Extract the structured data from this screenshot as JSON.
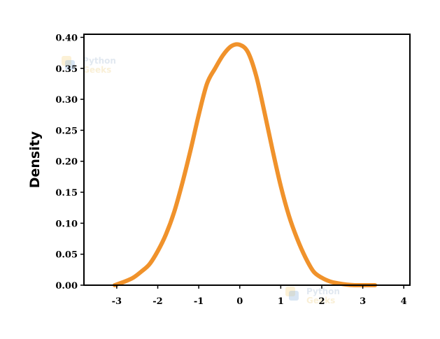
{
  "chart_data": {
    "type": "line",
    "title": "",
    "xlabel": "",
    "ylabel": "Density",
    "xlim": [
      -3.8,
      4.15
    ],
    "ylim": [
      0,
      0.405
    ],
    "x_ticks": [
      -3,
      -2,
      -1,
      0,
      1,
      2,
      3,
      4
    ],
    "y_ticks": [
      0.0,
      0.05,
      0.1,
      0.15,
      0.2,
      0.25,
      0.3,
      0.35,
      0.4
    ],
    "y_tick_labels": [
      "0.00",
      "0.05",
      "0.10",
      "0.15",
      "0.20",
      "0.25",
      "0.30",
      "0.35",
      "0.40"
    ],
    "grid": false,
    "legend": "none",
    "series": [
      {
        "color": "#f0922b",
        "x": [
          -3.05,
          -2.8,
          -2.6,
          -2.4,
          -2.2,
          -2.0,
          -1.8,
          -1.6,
          -1.4,
          -1.2,
          -1.0,
          -0.8,
          -0.6,
          -0.4,
          -0.2,
          0.0,
          0.2,
          0.4,
          0.6,
          0.8,
          1.0,
          1.2,
          1.4,
          1.6,
          1.8,
          2.0,
          2.2,
          2.4,
          2.6,
          2.8,
          3.0,
          3.3
        ],
        "y": [
          0.0,
          0.006,
          0.012,
          0.022,
          0.034,
          0.055,
          0.082,
          0.118,
          0.165,
          0.218,
          0.275,
          0.325,
          0.35,
          0.372,
          0.386,
          0.388,
          0.376,
          0.338,
          0.28,
          0.218,
          0.16,
          0.112,
          0.075,
          0.045,
          0.022,
          0.012,
          0.006,
          0.003,
          0.001,
          0.0,
          0.0,
          0.0
        ]
      }
    ],
    "watermarks": [
      {
        "line1": "Python",
        "line2": "Geeks"
      },
      {
        "line1": "Python",
        "line2": "Geeks"
      }
    ]
  }
}
